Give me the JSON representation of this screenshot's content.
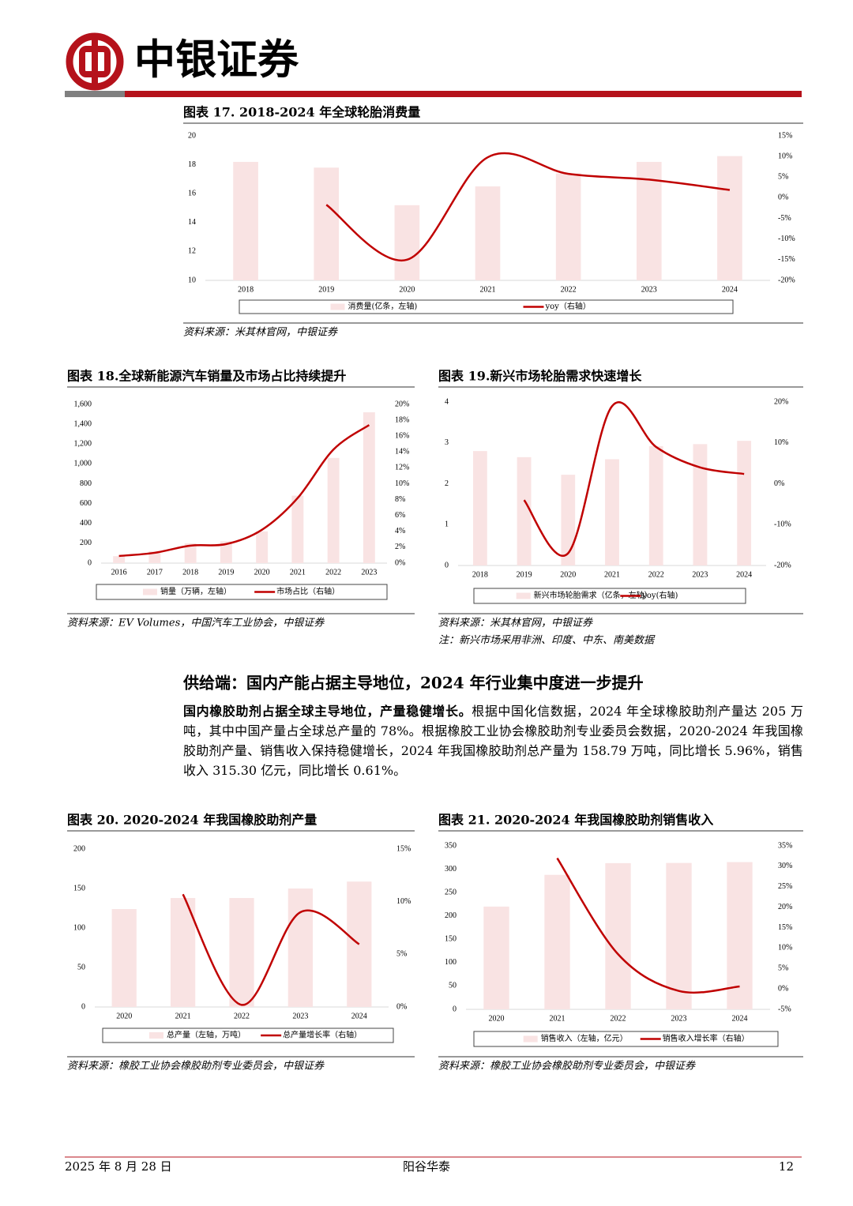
{
  "header": {
    "logo_text": "中银证券"
  },
  "chart_data": [
    {
      "type": "combo",
      "title": "图表 17. 2018-2024 年全球轮胎消费量",
      "categories": [
        "2018",
        "2019",
        "2020",
        "2021",
        "2022",
        "2023",
        "2024"
      ],
      "series": [
        {
          "name": "消费量(亿条，左轴)",
          "type": "bar",
          "color": "#f9e3e3",
          "values": [
            18.2,
            17.8,
            15.2,
            16.5,
            17.4,
            18.2,
            18.6
          ]
        },
        {
          "name": "yoy（右轴）",
          "type": "line",
          "axis": "y2",
          "color": "#c00000",
          "values": [
            null,
            -1.7,
            -15.0,
            9.8,
            5.8,
            4.4,
            1.9
          ]
        }
      ],
      "ylim": [
        10,
        20
      ],
      "yticks": [
        10,
        12,
        14,
        16,
        18,
        20
      ],
      "y2lim": [
        -20,
        15
      ],
      "y2ticks": [
        {
          "value": -20,
          "label": "-20%"
        },
        {
          "value": -15,
          "label": "-15%"
        },
        {
          "value": -10,
          "label": "-10%"
        },
        {
          "value": -5,
          "label": "-5%"
        },
        {
          "value": 0,
          "label": "0%"
        },
        {
          "value": 5,
          "label": "5%"
        },
        {
          "value": 10,
          "label": "10%"
        },
        {
          "value": 15,
          "label": "15%"
        }
      ],
      "source": "资料来源：米其林官网，中银证券"
    },
    {
      "type": "combo",
      "title": "图表 18.全球新能源汽车销量及市场占比持续提升",
      "categories": [
        "2016",
        "2017",
        "2018",
        "2019",
        "2020",
        "2021",
        "2022",
        "2023"
      ],
      "series": [
        {
          "name": "销量（万辆，左轴）",
          "type": "bar",
          "color": "#f9e3e3",
          "values": [
            70,
            120,
            200,
            220,
            320,
            680,
            1060,
            1520
          ]
        },
        {
          "name": "市场占比（右轴）",
          "type": "line",
          "axis": "y2",
          "color": "#c00000",
          "values": [
            0.9,
            1.3,
            2.2,
            2.4,
            4.2,
            8.2,
            14.3,
            17.4
          ]
        }
      ],
      "ylim": [
        0,
        1600
      ],
      "yticks": [
        0,
        200,
        400,
        600,
        800,
        {
          "value": 1000,
          "label": "1,000"
        },
        {
          "value": 1200,
          "label": "1,200"
        },
        {
          "value": 1400,
          "label": "1,400"
        },
        {
          "value": 1600,
          "label": "1,600"
        }
      ],
      "y2lim": [
        0,
        20
      ],
      "y2ticks": [
        {
          "value": 0,
          "label": "0%"
        },
        {
          "value": 2,
          "label": "2%"
        },
        {
          "value": 4,
          "label": "4%"
        },
        {
          "value": 6,
          "label": "6%"
        },
        {
          "value": 8,
          "label": "8%"
        },
        {
          "value": 10,
          "label": "10%"
        },
        {
          "value": 12,
          "label": "12%"
        },
        {
          "value": 14,
          "label": "14%"
        },
        {
          "value": 16,
          "label": "16%"
        },
        {
          "value": 18,
          "label": "18%"
        },
        {
          "value": 20,
          "label": "20%"
        }
      ],
      "source": "资料来源：EV Volumes，中国汽车工业协会，中银证券"
    },
    {
      "type": "combo",
      "title": "图表 19.新兴市场轮胎需求快速增长",
      "categories": [
        "2018",
        "2019",
        "2020",
        "2021",
        "2022",
        "2023",
        "2024"
      ],
      "series": [
        {
          "name": "新兴市场轮胎需求（亿条，左轴）",
          "type": "bar",
          "color": "#f9e3e3",
          "values": [
            2.8,
            2.65,
            2.22,
            2.6,
            2.92,
            2.97,
            3.05
          ]
        },
        {
          "name": "yoy(右轴)",
          "type": "line",
          "axis": "y2",
          "color": "#c00000",
          "values": [
            null,
            -4,
            -17,
            19,
            9,
            4,
            2.4
          ]
        }
      ],
      "ylim": [
        0,
        4
      ],
      "yticks": [
        0,
        1,
        2,
        3,
        4
      ],
      "y2lim": [
        -20,
        20
      ],
      "y2ticks": [
        {
          "value": -20,
          "label": "-20%"
        },
        {
          "value": -10,
          "label": "-10%"
        },
        {
          "value": 0,
          "label": "0%"
        },
        {
          "value": 10,
          "label": "10%"
        },
        {
          "value": 20,
          "label": "20%"
        }
      ],
      "source": "资料来源：米其林官网，中银证券",
      "note": "注：新兴市场采用非洲、印度、中东、南美数据"
    },
    {
      "type": "combo",
      "title": "图表 20. 2020-2024 年我国橡胶助剂产量",
      "categories": [
        "2020",
        "2021",
        "2022",
        "2023",
        "2024"
      ],
      "series": [
        {
          "name": "总产量（左轴，万吨）",
          "type": "bar",
          "color": "#f9e3e3",
          "values": [
            124,
            138,
            138,
            150,
            158.79
          ]
        },
        {
          "name": "总产量增长率（右轴）",
          "type": "line",
          "axis": "y2",
          "color": "#c00000",
          "values": [
            null,
            10.7,
            0.2,
            9,
            5.96
          ]
        }
      ],
      "ylim": [
        0,
        200
      ],
      "yticks": [
        0,
        50,
        100,
        150,
        200
      ],
      "y2lim": [
        0,
        15
      ],
      "y2ticks": [
        {
          "value": 0,
          "label": "0%"
        },
        {
          "value": 5,
          "label": "5%"
        },
        {
          "value": 10,
          "label": "10%"
        },
        {
          "value": 15,
          "label": "15%"
        }
      ],
      "source": "资料来源：橡胶工业协会橡胶助剂专业委员会，中银证券"
    },
    {
      "type": "combo",
      "title": "图表 21. 2020-2024 年我国橡胶助剂销售收入",
      "categories": [
        "2020",
        "2021",
        "2022",
        "2023",
        "2024"
      ],
      "series": [
        {
          "name": "销售收入（左轴，亿元）",
          "type": "bar",
          "color": "#f9e3e3",
          "values": [
            220,
            288,
            313,
            313.4,
            315.3
          ]
        },
        {
          "name": "销售收入增长率（右轴）",
          "type": "line",
          "axis": "y2",
          "color": "#c00000",
          "values": [
            null,
            32,
            8.5,
            -0.5,
            0.61
          ]
        }
      ],
      "ylim": [
        0,
        350
      ],
      "yticks": [
        0,
        50,
        100,
        150,
        200,
        250,
        300,
        350
      ],
      "y2lim": [
        -5,
        35
      ],
      "y2ticks": [
        {
          "value": -5,
          "label": "-5%"
        },
        {
          "value": 0,
          "label": "0%"
        },
        {
          "value": 5,
          "label": "5%"
        },
        {
          "value": 10,
          "label": "10%"
        },
        {
          "value": 15,
          "label": "15%"
        },
        {
          "value": 20,
          "label": "20%"
        },
        {
          "value": 25,
          "label": "25%"
        },
        {
          "value": 30,
          "label": "30%"
        },
        {
          "value": 35,
          "label": "35%"
        }
      ],
      "source": "资料来源：橡胶工业协会橡胶助剂专业委员会，中银证券"
    }
  ],
  "section": {
    "heading": "供给端：国内产能占据主导地位，2024 年行业集中度进一步提升",
    "lead": "国内橡胶助剂占据全球主导地位，产量稳健增长。",
    "text": "根据中国化信数据，2024 年全球橡胶助剂产量达 205 万吨，其中中国产量占全球总产量的 78%。根据橡胶工业协会橡胶助剂专业委员会数据，2020-2024 年我国橡胶助剂产量、销售收入保持稳健增长，2024 年我国橡胶助剂总产量为 158.79 万吨，同比增长 5.96%，销售收入 315.30 亿元，同比增长 0.61%。"
  },
  "footer": {
    "date": "2025 年 8 月 28 日",
    "company": "阳谷华泰",
    "page": "12"
  }
}
